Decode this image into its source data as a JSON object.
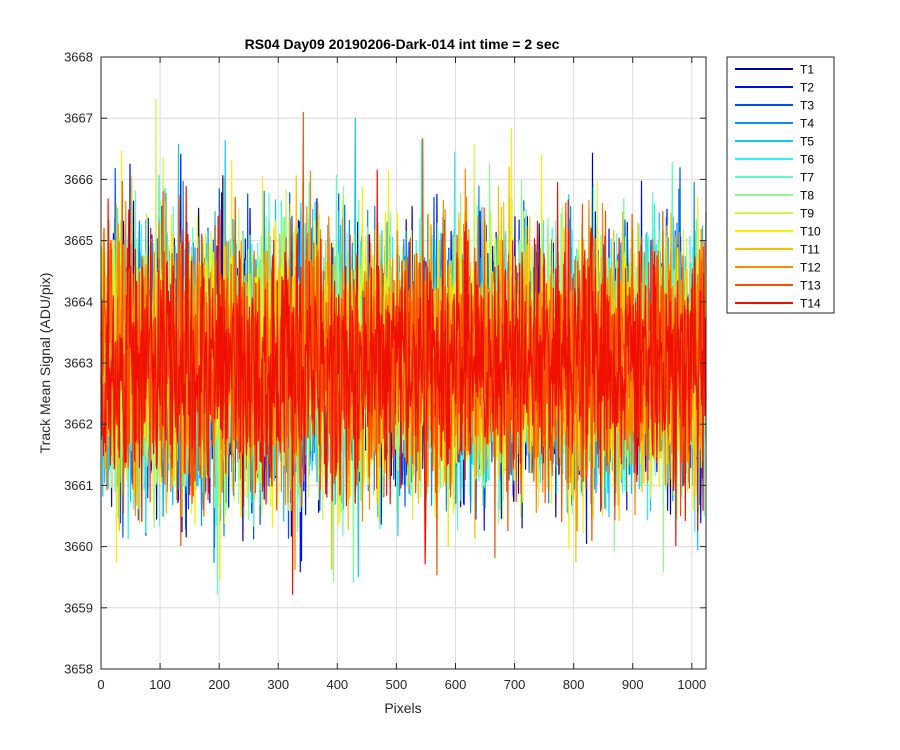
{
  "chart_data": {
    "type": "line",
    "title": "RS04 Day09 20190206-Dark-014 int time = 2 sec",
    "xlabel": "Pixels",
    "ylabel": "Track Mean Signal (ADU/pix)",
    "xlim": [
      0,
      1024
    ],
    "ylim": [
      3658,
      3668
    ],
    "xticks": [
      0,
      100,
      200,
      300,
      400,
      500,
      600,
      700,
      800,
      900,
      1000
    ],
    "yticks": [
      3658,
      3659,
      3660,
      3661,
      3662,
      3663,
      3664,
      3665,
      3666,
      3667,
      3668
    ],
    "grid": true,
    "legend_position": "outside-top-right",
    "noise_model": {
      "points_per_series": 1024,
      "mean": 3663.0,
      "std": 1.05,
      "approx_min": 3659.0,
      "approx_max": 3667.4
    },
    "series": [
      {
        "name": "T1",
        "color": "#0000a8"
      },
      {
        "name": "T2",
        "color": "#0010e0"
      },
      {
        "name": "T3",
        "color": "#0050f0"
      },
      {
        "name": "T4",
        "color": "#0090f8"
      },
      {
        "name": "T5",
        "color": "#10c8f8"
      },
      {
        "name": "T6",
        "color": "#30f0f0"
      },
      {
        "name": "T7",
        "color": "#60f8c8"
      },
      {
        "name": "T8",
        "color": "#90f890"
      },
      {
        "name": "T9",
        "color": "#c8f848"
      },
      {
        "name": "T10",
        "color": "#f8f000"
      },
      {
        "name": "T11",
        "color": "#f8c000"
      },
      {
        "name": "T12",
        "color": "#f88800"
      },
      {
        "name": "T13",
        "color": "#f85000"
      },
      {
        "name": "T14",
        "color": "#f01000"
      }
    ]
  }
}
